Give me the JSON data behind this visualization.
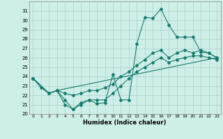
{
  "xlabel": "Humidex (Indice chaleur)",
  "bg_color": "#ceeee8",
  "grid_color": "#aad4cc",
  "line_color": "#1a7a6e",
  "xlim": [
    -0.5,
    23.5
  ],
  "ylim": [
    20,
    32
  ],
  "yticks": [
    20,
    21,
    22,
    23,
    24,
    25,
    26,
    27,
    28,
    29,
    30,
    31
  ],
  "xticks": [
    0,
    1,
    2,
    3,
    4,
    5,
    6,
    7,
    8,
    9,
    10,
    11,
    12,
    13,
    14,
    15,
    16,
    17,
    18,
    19,
    20,
    21,
    22,
    23
  ],
  "line1_x": [
    0,
    1,
    2,
    3,
    4,
    5,
    6,
    7,
    8,
    9,
    10,
    11,
    12,
    13,
    14,
    15,
    16,
    17,
    18,
    19,
    20,
    21,
    22,
    23
  ],
  "line1_y": [
    23.8,
    22.8,
    22.2,
    22.5,
    21.0,
    20.5,
    21.2,
    21.5,
    21.1,
    21.2,
    24.2,
    21.5,
    21.5,
    27.5,
    30.3,
    30.2,
    31.2,
    29.5,
    28.2,
    28.2,
    28.2,
    26.6,
    26.5,
    26.0
  ],
  "line2_x": [
    0,
    2,
    3,
    23
  ],
  "line2_y": [
    23.8,
    22.2,
    22.5,
    26.0
  ],
  "line3_x": [
    0,
    2,
    3,
    4,
    5,
    6,
    7,
    8,
    9,
    10,
    11,
    12,
    13,
    14,
    15,
    16,
    17,
    18,
    19,
    20,
    21,
    22,
    23
  ],
  "line3_y": [
    23.8,
    22.2,
    22.5,
    22.2,
    22.0,
    22.2,
    22.5,
    22.5,
    22.8,
    23.2,
    24.0,
    24.5,
    25.2,
    25.8,
    26.5,
    26.8,
    26.0,
    26.5,
    26.8,
    26.5,
    26.8,
    26.5,
    26.0
  ],
  "line4_x": [
    0,
    2,
    3,
    4,
    5,
    6,
    7,
    8,
    9,
    10,
    11,
    12,
    13,
    14,
    15,
    16,
    17,
    18,
    19,
    20,
    21,
    22,
    23
  ],
  "line4_y": [
    23.8,
    22.2,
    22.5,
    21.5,
    20.5,
    21.0,
    21.5,
    21.5,
    21.5,
    22.2,
    23.0,
    23.8,
    24.5,
    25.0,
    25.5,
    26.0,
    25.5,
    25.8,
    26.0,
    26.2,
    26.2,
    26.0,
    25.8
  ]
}
